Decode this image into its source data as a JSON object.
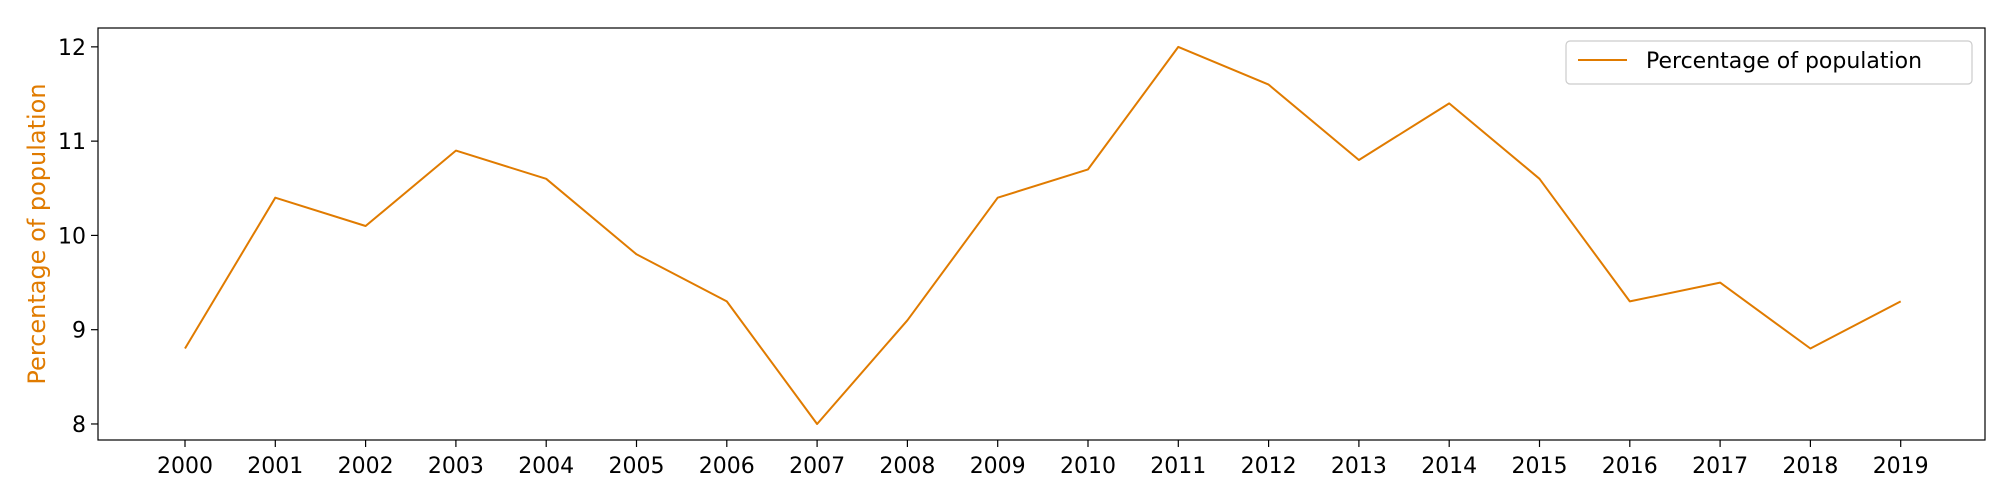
{
  "chart_data": {
    "type": "line",
    "title": "",
    "xlabel": "",
    "ylabel": "Percentage of population",
    "x": [
      "2000",
      "2001",
      "2002",
      "2003",
      "2004",
      "2005",
      "2006",
      "2007",
      "2008",
      "2009",
      "2010",
      "2011",
      "2012",
      "2013",
      "2014",
      "2015",
      "2016",
      "2017",
      "2018",
      "2019"
    ],
    "series": [
      {
        "name": "Percentage of population",
        "color": "#e07b00",
        "values": [
          8.8,
          10.4,
          10.1,
          10.9,
          10.6,
          9.8,
          9.3,
          8.0,
          9.1,
          10.4,
          10.7,
          12.0,
          11.6,
          10.8,
          11.4,
          10.6,
          9.3,
          9.5,
          8.8,
          9.3
        ]
      }
    ],
    "yticks": [
      "8",
      "9",
      "10",
      "11",
      "12"
    ],
    "ylim": [
      7.83,
      12.2
    ],
    "grid": false,
    "legend_position": "top-right"
  }
}
